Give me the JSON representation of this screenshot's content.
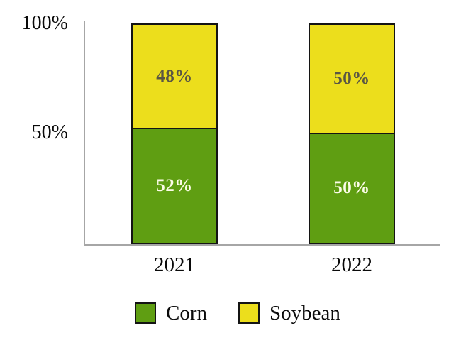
{
  "chart_data": {
    "type": "bar",
    "variant": "100-percent-stacked-column",
    "title": "",
    "categories": [
      "2021",
      "2022"
    ],
    "series": [
      {
        "name": "Corn",
        "color": "#5F9E12",
        "values": [
          52,
          50
        ],
        "labels": [
          "52%",
          "50%"
        ],
        "label_color": "#FCFCE8"
      },
      {
        "name": "Soybean",
        "color": "#ECDE1C",
        "values": [
          48,
          50
        ],
        "labels": [
          "48%",
          "50%"
        ],
        "label_color": "#5A5644"
      }
    ],
    "y_axis": {
      "ticks": [
        "100%",
        "50%"
      ],
      "range": [
        0,
        100
      ]
    },
    "legend_position": "bottom",
    "grid": false,
    "axis_color": "#A6A6A6",
    "bar_edge_color": "#141414",
    "background": "#FFFFFF"
  }
}
